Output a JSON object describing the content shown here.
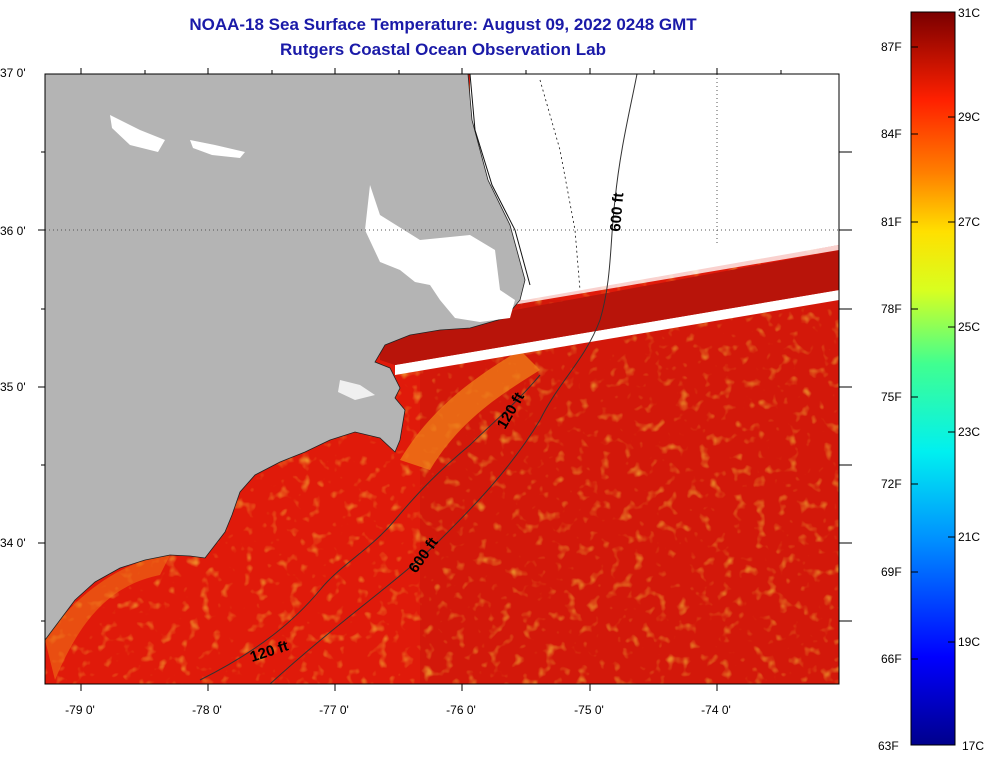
{
  "title_line1": "NOAA-18 Sea Surface Temperature:  August 09, 2022 0248 GMT",
  "title_line2": "Rutgers Coastal Ocean Observation Lab",
  "lat_labels": [
    "37 0'",
    "36 0'",
    "35 0'",
    "34 0'"
  ],
  "lon_labels": [
    "-79 0'",
    "-78 0'",
    "-77 0'",
    "-76 0'",
    "-75 0'",
    "-74 0'"
  ],
  "contours": {
    "c120_a": "120 ft",
    "c120_b": "120 ft",
    "c600_a": "600 ft",
    "c600_b": "600 ft"
  },
  "colorbar": {
    "fahrenheit": [
      "87F",
      "84F",
      "81F",
      "78F",
      "75F",
      "72F",
      "69F",
      "66F",
      "63F"
    ],
    "celsius": [
      "31C",
      "29C",
      "27C",
      "25C",
      "23C",
      "21C",
      "19C",
      "17C"
    ],
    "range_c": [
      17,
      31
    ],
    "range_f": [
      63,
      88
    ]
  },
  "colors": {
    "land": "#b4b4b4",
    "ocean_warm": "#e01a0a",
    "title": "#1a1aa8"
  }
}
